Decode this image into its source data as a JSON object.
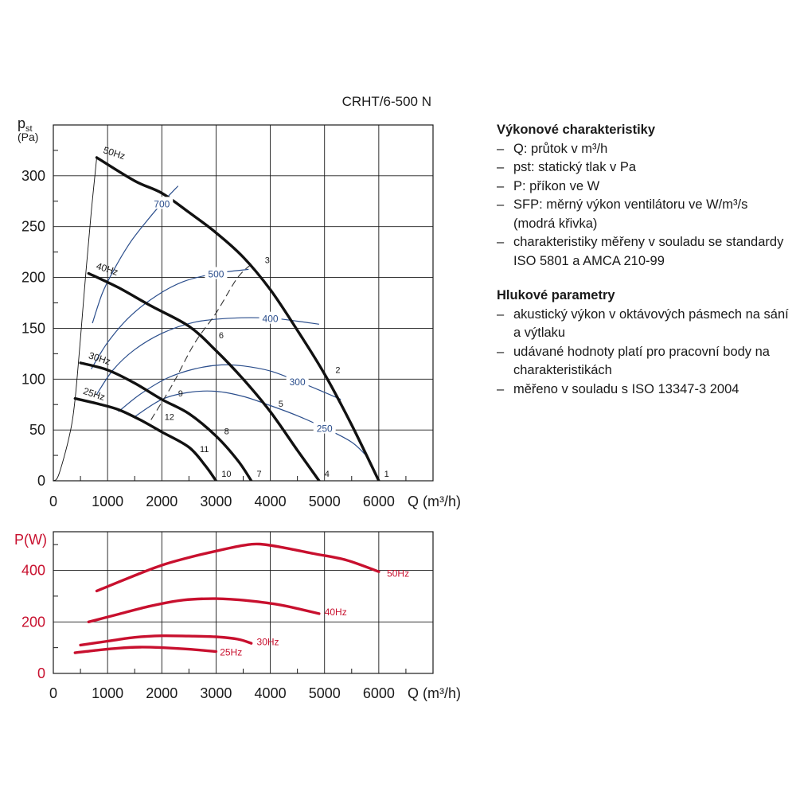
{
  "chart_data": [
    {
      "type": "line",
      "title": "CRHT/6-500 N",
      "ylabel_main": "p",
      "ylabel_sub": "st",
      "ylabel_unit": "(Pa)",
      "xlabel": "Q (m³/h)",
      "xlim": [
        0,
        7000
      ],
      "ylim": [
        0,
        350
      ],
      "xticks": [
        "0",
        "1000",
        "2000",
        "3000",
        "4000",
        "5000",
        "6000"
      ],
      "yticks": [
        "0",
        "50",
        "100",
        "150",
        "200",
        "250",
        "300"
      ],
      "grid": true,
      "series": [
        {
          "name": "50Hz",
          "color": "#111111",
          "x": [
            800,
            1500,
            2000,
            2500,
            3000,
            3500,
            4000,
            4500,
            5000,
            5500,
            6000
          ],
          "y": [
            318,
            295,
            283,
            264,
            244,
            220,
            188,
            148,
            105,
            55,
            0
          ]
        },
        {
          "name": "40Hz",
          "color": "#111111",
          "x": [
            650,
            1200,
            1800,
            2500,
            3000,
            3500,
            4000,
            4500,
            4900
          ],
          "y": [
            204,
            190,
            172,
            152,
            128,
            100,
            68,
            30,
            0
          ]
        },
        {
          "name": "30Hz",
          "color": "#111111",
          "x": [
            500,
            1000,
            1500,
            2000,
            2500,
            3000,
            3400,
            3650
          ],
          "y": [
            116,
            109,
            96,
            80,
            66,
            44,
            20,
            0
          ]
        },
        {
          "name": "25Hz",
          "color": "#111111",
          "x": [
            400,
            800,
            1200,
            1600,
            2000,
            2500,
            2800,
            3000
          ],
          "y": [
            81,
            76,
            70,
            60,
            48,
            33,
            15,
            0
          ]
        }
      ],
      "system_curve": {
        "color": "#111111",
        "x": [
          0,
          100,
          300,
          400,
          500,
          600,
          700,
          800
        ],
        "y": [
          0,
          6,
          45,
          80,
          140,
          205,
          265,
          318
        ]
      },
      "operating_line": {
        "color": "#333333",
        "x": [
          1800,
          2200,
          2600,
          3000,
          3400,
          3700
        ],
        "y": [
          60,
          95,
          135,
          165,
          200,
          215
        ]
      },
      "sfp_curves": [
        {
          "label": "700",
          "color": "#2b4e8c",
          "x": [
            720,
            900,
            1100,
            1400,
            1700,
            2000,
            2300
          ],
          "y": [
            155,
            184,
            206,
            233,
            254,
            273,
            290
          ]
        },
        {
          "label": "500",
          "color": "#2b4e8c",
          "x": [
            700,
            1000,
            1400,
            1900,
            2400,
            3000,
            3600
          ],
          "y": [
            110,
            136,
            161,
            182,
            196,
            204,
            208
          ]
        },
        {
          "label": "400",
          "color": "#2b4e8c",
          "x": [
            800,
            1100,
            1500,
            2000,
            2600,
            3300,
            4000,
            4500,
            4900
          ],
          "y": [
            85,
            109,
            129,
            145,
            156,
            160,
            160,
            157,
            154
          ]
        },
        {
          "label": "300",
          "color": "#2b4e8c",
          "x": [
            1200,
            1600,
            2100,
            2600,
            3100,
            3500,
            4000,
            4500,
            5000,
            5300
          ],
          "y": [
            68,
            85,
            101,
            110,
            114,
            113,
            108,
            98,
            87,
            80
          ]
        },
        {
          "label": "250",
          "color": "#2b4e8c",
          "x": [
            1500,
            2000,
            2500,
            3000,
            3500,
            4000,
            4500,
            5000,
            5500,
            5800
          ],
          "y": [
            63,
            80,
            87,
            88,
            83,
            74,
            64,
            52,
            38,
            23
          ]
        }
      ],
      "point_labels": [
        {
          "label": "1",
          "x": 6100,
          "y": 4
        },
        {
          "label": "2",
          "x": 5200,
          "y": 106
        },
        {
          "label": "3",
          "x": 3900,
          "y": 214
        },
        {
          "label": "4",
          "x": 5000,
          "y": 4
        },
        {
          "label": "5",
          "x": 4150,
          "y": 73
        },
        {
          "label": "6",
          "x": 3050,
          "y": 140
        },
        {
          "label": "7",
          "x": 3750,
          "y": 4
        },
        {
          "label": "8",
          "x": 3150,
          "y": 46
        },
        {
          "label": "9",
          "x": 2300,
          "y": 83
        },
        {
          "label": "10",
          "x": 3100,
          "y": 4
        },
        {
          "label": "11",
          "x": 2700,
          "y": 28
        },
        {
          "label": "12",
          "x": 2050,
          "y": 60
        }
      ],
      "series_labels": [
        {
          "label": "50Hz",
          "x": 850,
          "y": 318
        },
        {
          "label": "40Hz",
          "x": 720,
          "y": 204
        },
        {
          "label": "30Hz",
          "x": 580,
          "y": 116
        },
        {
          "label": "25Hz",
          "x": 480,
          "y": 81
        }
      ]
    },
    {
      "type": "line",
      "ylabel": "P(W)",
      "xlabel": "Q (m³/h)",
      "xlim": [
        0,
        7000
      ],
      "ylim": [
        0,
        550
      ],
      "xticks": [
        "0",
        "1000",
        "2000",
        "3000",
        "4000",
        "5000",
        "6000"
      ],
      "yticks": [
        "0",
        "200",
        "400"
      ],
      "grid": true,
      "series": [
        {
          "name": "50Hz",
          "color": "#c8102e",
          "x": [
            800,
            1500,
            2000,
            2500,
            3000,
            3500,
            3800,
            4200,
            4800,
            5400,
            6000
          ],
          "y": [
            320,
            380,
            420,
            450,
            475,
            497,
            502,
            490,
            465,
            440,
            395
          ]
        },
        {
          "name": "40Hz",
          "color": "#c8102e",
          "x": [
            650,
            1200,
            1800,
            2400,
            3000,
            3600,
            4200,
            4900
          ],
          "y": [
            200,
            230,
            262,
            285,
            290,
            282,
            265,
            232
          ]
        },
        {
          "name": "30Hz",
          "color": "#c8102e",
          "x": [
            500,
            1000,
            1500,
            2000,
            2500,
            3000,
            3400,
            3650
          ],
          "y": [
            110,
            125,
            140,
            146,
            145,
            142,
            133,
            117
          ]
        },
        {
          "name": "25Hz",
          "color": "#c8102e",
          "x": [
            400,
            800,
            1200,
            1600,
            2000,
            2500,
            3000
          ],
          "y": [
            80,
            90,
            98,
            102,
            100,
            94,
            85
          ]
        }
      ],
      "series_labels": [
        {
          "label": "50Hz",
          "x": 6150,
          "y": 375
        },
        {
          "label": "40Hz",
          "x": 5000,
          "y": 225
        },
        {
          "label": "30Hz",
          "x": 3750,
          "y": 110
        },
        {
          "label": "25Hz",
          "x": 3070,
          "y": 70
        }
      ]
    }
  ],
  "legend": {
    "section1_title": "Výkonové charakteristiky",
    "section1_items": [
      "Q: průtok v m³/h",
      "pst: statický tlak v Pa",
      "P: příkon ve W",
      "SFP: měrný výkon ventilátoru ve W/m³/s (modrá křivka)",
      "charakteristiky měřeny v souladu se standardy ISO 5801 a AMCA 210-99"
    ],
    "section2_title": "Hlukové parametry",
    "section2_items": [
      "akustický výkon v oktávových pásmech na sání a výtlaku",
      "udávané hodnoty platí pro pracovní body na charakteristikách",
      "měřeno v souladu s ISO 13347-3 2004"
    ]
  }
}
